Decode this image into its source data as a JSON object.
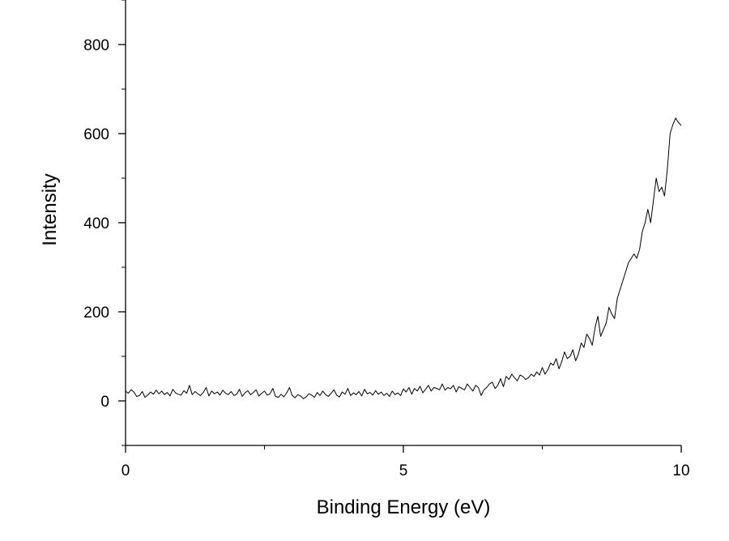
{
  "chart_data": {
    "type": "line",
    "title": "",
    "xlabel": "Binding Energy (eV)",
    "ylabel": "Intensity",
    "xlim": [
      0,
      10
    ],
    "ylim": [
      -100,
      900
    ],
    "xticks": [
      0,
      5,
      10
    ],
    "yticks": [
      0,
      200,
      400,
      600,
      800
    ],
    "x_minor_step": 2.5,
    "y_minor_step": 100,
    "grid": false,
    "legend": "none",
    "line_color": "#000000",
    "series": [
      {
        "x": [
          0.0,
          0.05,
          0.1,
          0.15,
          0.2,
          0.25,
          0.3,
          0.35,
          0.4,
          0.45,
          0.5,
          0.55,
          0.6,
          0.65,
          0.7,
          0.75,
          0.8,
          0.85,
          0.9,
          0.95,
          1.0,
          1.05,
          1.1,
          1.15,
          1.2,
          1.25,
          1.3,
          1.35,
          1.4,
          1.45,
          1.5,
          1.55,
          1.6,
          1.65,
          1.7,
          1.75,
          1.8,
          1.85,
          1.9,
          1.95,
          2.0,
          2.05,
          2.1,
          2.15,
          2.2,
          2.25,
          2.3,
          2.35,
          2.4,
          2.45,
          2.5,
          2.55,
          2.6,
          2.65,
          2.7,
          2.75,
          2.8,
          2.85,
          2.9,
          2.95,
          3.0,
          3.05,
          3.1,
          3.15,
          3.2,
          3.25,
          3.3,
          3.35,
          3.4,
          3.45,
          3.5,
          3.55,
          3.6,
          3.65,
          3.7,
          3.75,
          3.8,
          3.85,
          3.9,
          3.95,
          4.0,
          4.05,
          4.1,
          4.15,
          4.2,
          4.25,
          4.3,
          4.35,
          4.4,
          4.45,
          4.5,
          4.55,
          4.6,
          4.65,
          4.7,
          4.75,
          4.8,
          4.85,
          4.9,
          4.95,
          5.0,
          5.05,
          5.1,
          5.15,
          5.2,
          5.25,
          5.3,
          5.35,
          5.4,
          5.45,
          5.5,
          5.55,
          5.6,
          5.65,
          5.7,
          5.75,
          5.8,
          5.85,
          5.9,
          5.95,
          6.0,
          6.05,
          6.1,
          6.15,
          6.2,
          6.25,
          6.3,
          6.35,
          6.4,
          6.45,
          6.5,
          6.55,
          6.6,
          6.65,
          6.7,
          6.75,
          6.8,
          6.85,
          6.9,
          6.95,
          7.0,
          7.05,
          7.1,
          7.15,
          7.2,
          7.25,
          7.3,
          7.35,
          7.4,
          7.45,
          7.5,
          7.55,
          7.6,
          7.65,
          7.7,
          7.75,
          7.8,
          7.85,
          7.9,
          7.95,
          8.0,
          8.05,
          8.1,
          8.15,
          8.2,
          8.25,
          8.3,
          8.35,
          8.4,
          8.45,
          8.5,
          8.55,
          8.6,
          8.65,
          8.7,
          8.75,
          8.8,
          8.85,
          8.9,
          8.95,
          9.0,
          9.05,
          9.1,
          9.15,
          9.2,
          9.25,
          9.3,
          9.35,
          9.4,
          9.45,
          9.5,
          9.55,
          9.6,
          9.65,
          9.7,
          9.75,
          9.8,
          9.85,
          9.9,
          9.95,
          10.0
        ],
        "y": [
          22,
          17,
          25,
          20,
          10,
          12,
          21,
          8,
          13,
          20,
          15,
          24,
          16,
          22,
          14,
          19,
          11,
          26,
          18,
          15,
          13,
          23,
          17,
          35,
          14,
          21,
          16,
          12,
          19,
          30,
          11,
          22,
          16,
          20,
          13,
          24,
          17,
          14,
          21,
          12,
          15,
          26,
          10,
          18,
          23,
          14,
          19,
          25,
          11,
          17,
          22,
          13,
          16,
          28,
          10,
          8,
          15,
          9,
          18,
          30,
          12,
          7,
          14,
          11,
          5,
          9,
          16,
          13,
          8,
          19,
          12,
          22,
          14,
          10,
          17,
          25,
          13,
          9,
          20,
          15,
          28,
          12,
          18,
          14,
          21,
          11,
          26,
          16,
          19,
          13,
          23,
          15,
          20,
          12,
          17,
          10,
          22,
          14,
          18,
          12,
          27,
          20,
          30,
          15,
          28,
          22,
          33,
          18,
          26,
          35,
          22,
          30,
          28,
          25,
          38,
          24,
          30,
          27,
          35,
          20,
          32,
          28,
          25,
          38,
          30,
          22,
          35,
          30,
          12,
          25,
          30,
          38,
          42,
          28,
          35,
          50,
          32,
          55,
          48,
          60,
          52,
          45,
          58,
          55,
          48,
          52,
          60,
          55,
          65,
          58,
          75,
          60,
          70,
          85,
          80,
          95,
          72,
          88,
          110,
          95,
          100,
          115,
          90,
          105,
          130,
          120,
          150,
          140,
          125,
          165,
          190,
          145,
          160,
          175,
          210,
          195,
          185,
          230,
          250,
          270,
          290,
          310,
          320,
          330,
          320,
          340,
          380,
          400,
          430,
          400,
          450,
          500,
          470,
          480,
          460,
          520,
          600,
          620,
          635,
          625,
          618
        ]
      }
    ]
  }
}
